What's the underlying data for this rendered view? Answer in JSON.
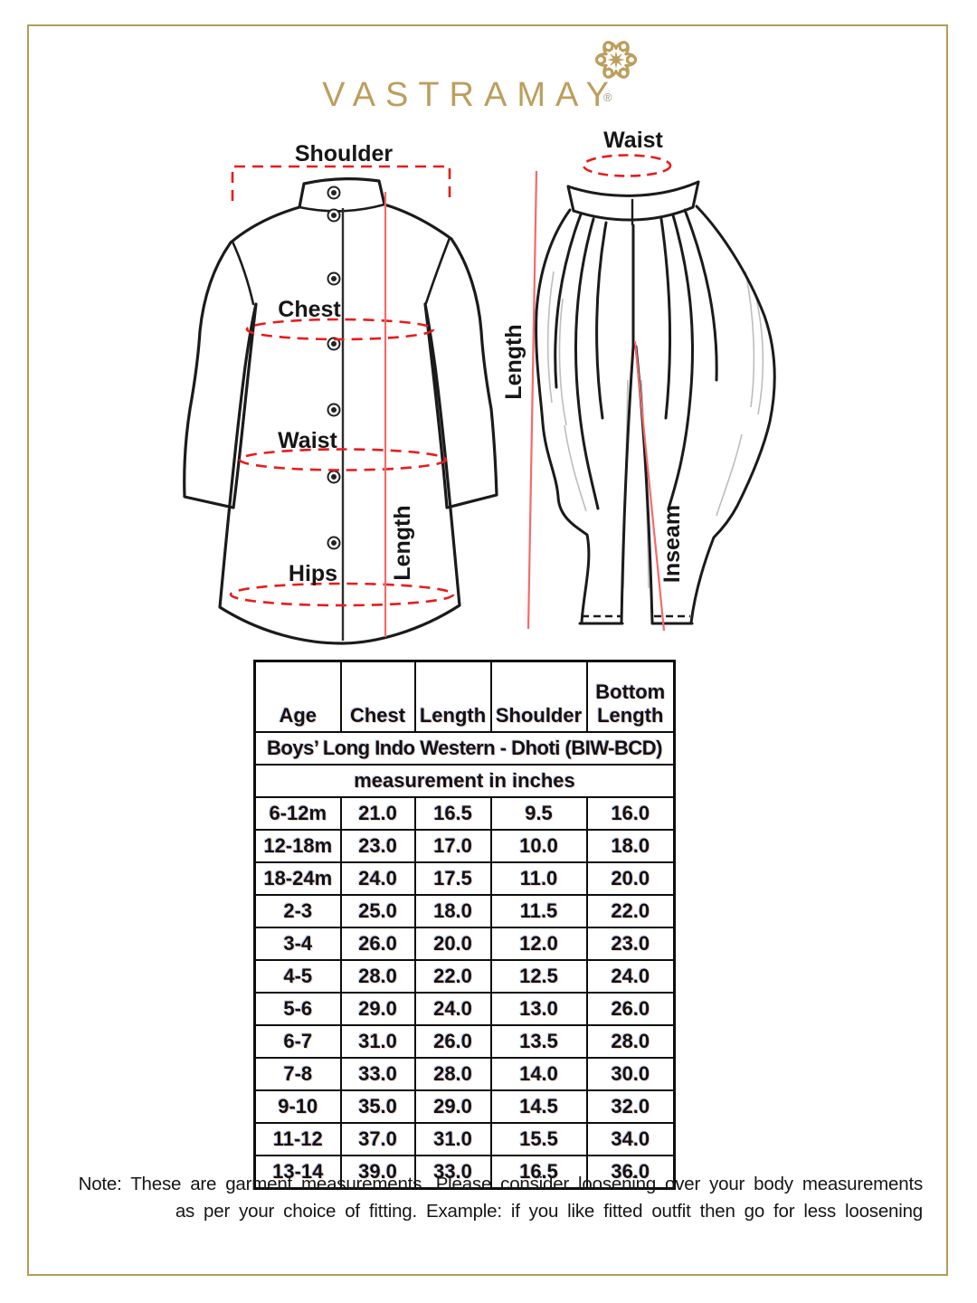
{
  "page": {
    "logo_text": "VASTRAMAY",
    "registered_mark": "®",
    "colors": {
      "gold": "#bd9e5d",
      "frame_gold": "#b49b58",
      "red_dashed": "#e81c1c",
      "red_line": "#f56a6a",
      "ink": "#121212"
    }
  },
  "kurta_diagram": {
    "shoulder_label": "Shoulder",
    "chest_label": "Chest",
    "waist_label": "Waist",
    "hips_label": "Hips",
    "length_label": "Length"
  },
  "dhoti_diagram": {
    "waist_label": "Waist",
    "length_label": "Length",
    "inseam_label": "Inseam"
  },
  "size_table": {
    "title": "Boys’ Long Indo Western - Dhoti (BIW-BCD)",
    "subtitle": "measurement in inches",
    "columns": [
      "Age",
      "Chest",
      "Length",
      "Shoulder",
      "Bottom Length"
    ],
    "rows": [
      [
        "6-12m",
        "21.0",
        "16.5",
        "9.5",
        "16.0"
      ],
      [
        "12-18m",
        "23.0",
        "17.0",
        "10.0",
        "18.0"
      ],
      [
        "18-24m",
        "24.0",
        "17.5",
        "11.0",
        "20.0"
      ],
      [
        "2-3",
        "25.0",
        "18.0",
        "11.5",
        "22.0"
      ],
      [
        "3-4",
        "26.0",
        "20.0",
        "12.0",
        "23.0"
      ],
      [
        "4-5",
        "28.0",
        "22.0",
        "12.5",
        "24.0"
      ],
      [
        "5-6",
        "29.0",
        "24.0",
        "13.0",
        "26.0"
      ],
      [
        "6-7",
        "31.0",
        "26.0",
        "13.5",
        "28.0"
      ],
      [
        "7-8",
        "33.0",
        "28.0",
        "14.0",
        "30.0"
      ],
      [
        "9-10",
        "35.0",
        "29.0",
        "14.5",
        "32.0"
      ],
      [
        "11-12",
        "37.0",
        "31.0",
        "15.5",
        "34.0"
      ],
      [
        "13-14",
        "39.0",
        "33.0",
        "16.5",
        "36.0"
      ]
    ]
  },
  "note": {
    "line1": "Note: These are garment measurements. Please consider loosening over your body measurements",
    "line2": "as per your choice of fitting. Example: if you like fitted outfit then go for less loosening"
  }
}
